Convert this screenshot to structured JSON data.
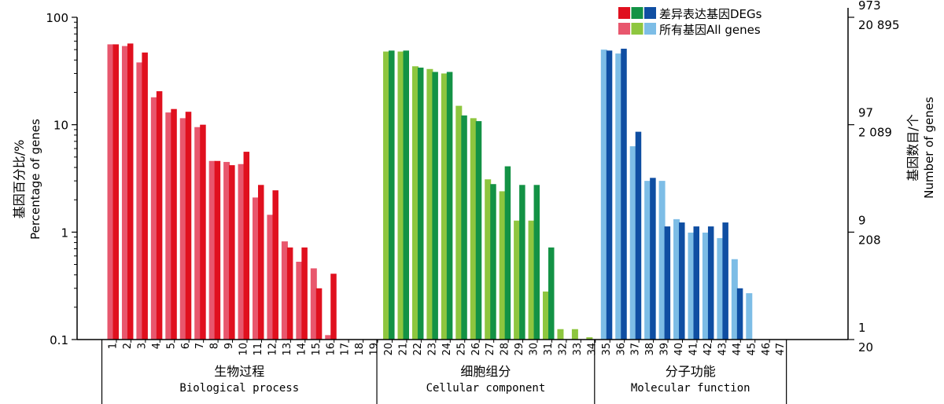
{
  "chart_data": {
    "type": "bar",
    "y_scale": "log",
    "ylim": [
      0.1,
      100
    ],
    "grid": false,
    "legend_position": "top-right",
    "ylabel_cn": "基因百分比/%",
    "ylabel_en": "Percentage of genes",
    "y2label_cn": "基因数目/个",
    "y2label_en": "Number of genes",
    "y_ticks": [
      {
        "value": 0.1,
        "label": "0.1"
      },
      {
        "value": 1,
        "label": "1"
      },
      {
        "value": 10,
        "label": "10"
      },
      {
        "value": 100,
        "label": "100"
      }
    ],
    "y2_ticks": [
      {
        "value": 0.1,
        "top": "1",
        "bottom": "20"
      },
      {
        "value": 1,
        "top": "9",
        "bottom": "208"
      },
      {
        "value": 10,
        "top": "97",
        "bottom": "2 089"
      },
      {
        "value": 100,
        "top": "973",
        "bottom": "20 895"
      }
    ],
    "legend": [
      {
        "label": "差异表达基因DEGs",
        "colors": [
          "#e0101e",
          "#139245",
          "#0f4ea2"
        ]
      },
      {
        "label": "所有基因All genes",
        "colors": [
          "#e8576d",
          "#8ec63f",
          "#7dbde6"
        ]
      }
    ],
    "groups": [
      {
        "name_cn": "生物过程",
        "name_en": "Biological process",
        "start": 1,
        "end": 19,
        "deg_color": "#e0101e",
        "all_color": "#e8576d"
      },
      {
        "name_cn": "细胞组分",
        "name_en": "Cellular component",
        "start": 20,
        "end": 34,
        "deg_color": "#139245",
        "all_color": "#8ec63f"
      },
      {
        "name_cn": "分子功能",
        "name_en": "Molecular function",
        "start": 35,
        "end": 47,
        "deg_color": "#0f4ea2",
        "all_color": "#7dbde6"
      }
    ],
    "categories": [
      "1",
      "2",
      "3",
      "4",
      "5",
      "6",
      "7",
      "8",
      "9",
      "10",
      "11",
      "12",
      "13",
      "14",
      "15",
      "16",
      "17",
      "18",
      "19",
      "20",
      "21",
      "22",
      "23",
      "24",
      "25",
      "26",
      "27",
      "28",
      "29",
      "30",
      "31",
      "32",
      "33",
      "34",
      "35",
      "36",
      "37",
      "38",
      "39",
      "40",
      "41",
      "42",
      "43",
      "44",
      "45",
      "46",
      "47"
    ],
    "series": [
      {
        "name": "所有基因All genes",
        "values": [
          56,
          54,
          38,
          18,
          13,
          11.5,
          9.5,
          4.6,
          4.5,
          4.3,
          2.1,
          1.45,
          0.82,
          0.53,
          0.46,
          0.11,
          null,
          null,
          null,
          48,
          48,
          35,
          33,
          30,
          15,
          11.5,
          3.1,
          2.4,
          1.28,
          1.28,
          0.28,
          0.125,
          0.125,
          0.105,
          50,
          46,
          6.3,
          3.0,
          3.0,
          1.32,
          0.99,
          0.99,
          0.88,
          0.56,
          0.27,
          null,
          null
        ]
      },
      {
        "name": "差异表达基因DEGs",
        "values": [
          56,
          57,
          47,
          20.5,
          14,
          13.2,
          10,
          4.6,
          4.2,
          5.6,
          2.75,
          2.45,
          0.72,
          0.72,
          0.3,
          0.41,
          null,
          null,
          null,
          49,
          49,
          34,
          31,
          31,
          12.2,
          10.8,
          2.8,
          4.1,
          2.75,
          2.75,
          0.72,
          null,
          null,
          null,
          49,
          51,
          8.6,
          3.2,
          1.13,
          1.23,
          1.13,
          1.13,
          1.23,
          0.3,
          null,
          null,
          null
        ]
      }
    ]
  }
}
